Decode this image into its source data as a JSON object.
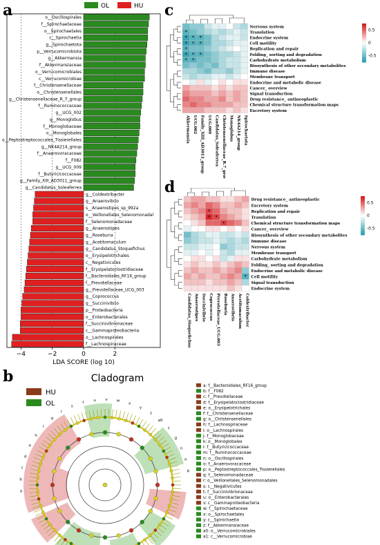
{
  "panel_labels": {
    "a": "a",
    "b": "b",
    "c": "c",
    "d": "d"
  },
  "chart_data": [
    {
      "type": "bar",
      "panel": "a",
      "legend": [
        {
          "name": "OL",
          "color": "#2a8a1f"
        },
        {
          "name": "HU",
          "color": "#e02020"
        }
      ],
      "xlabel": "LDA SCORE (log 10)",
      "xticks": [
        -4,
        -2,
        0,
        2
      ],
      "xlim": [
        -4.9,
        4.9
      ],
      "series": [
        {
          "name": "OL",
          "color": "#2a8a1f",
          "categories": [
            "o__Oscillospirales",
            "f__Spirochaetaceae",
            "o__Spirochaetales",
            "c__Spirochaetia",
            "g__Spirochaetota",
            "p__Verrucomicrobiota",
            "g__Akkermansia",
            "f__Akkermansiaceae",
            "o__Verrucomicrobiales",
            "c__Verrucomicrobiae",
            "f__Christensenellaceae",
            "o__Christensenellales",
            "g__Christensenellaceae_R_7_group",
            "f__Ruminococcaceae",
            "g__UCG_002",
            "g__Monoglobus",
            "f__Monoglobaceae",
            "o__Monoglobales",
            "o__Peptostreptococcales_Tissierellales",
            "g__NK4A214_group",
            "f__Anaerovoracaceae",
            "f__F082",
            "g__UCG_009",
            "f__Butyricicoccaceae",
            "g__Family_XIII_AD3011_group",
            "g__Candidatus_Soleaferrea"
          ],
          "values": [
            4.2,
            4.15,
            4.1,
            4.1,
            4.05,
            4.0,
            3.95,
            3.95,
            3.9,
            3.9,
            3.8,
            3.8,
            3.75,
            3.7,
            3.65,
            3.6,
            3.6,
            3.55,
            3.5,
            3.45,
            3.4,
            3.35,
            3.3,
            3.3,
            3.25,
            3.2
          ]
        },
        {
          "name": "HU",
          "color": "#e02020",
          "categories": [
            "g__Coldextribacter",
            "g__Anaerovibrio",
            "s__Anaerostipes_sp_992a",
            "o__Veillonellales_Selenomonadal",
            "f__Selenomonadaceae",
            "g__Anaerostipes",
            "g__Roseburia",
            "g__Acetitomaculum",
            "g__Candidatus_Stoquefichus",
            "o__Erysipelotrichales",
            "c__Negativicutes",
            "f__Erysipelatoclostridiaceae",
            "f__Bacteroidales_RF16_group",
            "f__Prevotellaceae",
            "g__Prevotellaceae_UCG_003",
            "g__Coprococcus",
            "g__Succinivibrio",
            "p__Proteobacteria",
            "o__Enterobacterales",
            "f__Succinivibrionaceae",
            "c__Gammaproteobacteria",
            "o__Lachnospirales",
            "f__Lachnospiraceae"
          ],
          "values": [
            -3.1,
            -3.15,
            -3.2,
            -3.25,
            -3.25,
            -3.35,
            -3.4,
            -3.45,
            -3.5,
            -3.55,
            -3.6,
            -3.65,
            -3.7,
            -3.75,
            -3.8,
            -3.9,
            -3.95,
            -4.0,
            -4.0,
            -4.05,
            -4.05,
            -4.55,
            -4.6
          ]
        }
      ]
    },
    {
      "type": "heatmap",
      "panel": "c",
      "columns": [
        "Akkermansia",
        "UCG.002",
        "Family_XIII_AD3011_group",
        "UCG.009",
        "Candidatus_Soleaferrea",
        "Christensenellaceae_R.7_group",
        "Monoglobus",
        "NK4A214_group",
        "Spirochaetota"
      ],
      "rows": [
        "Nervous system",
        "Translation",
        "Endocrine system",
        "Cell motility",
        "Replication and repair",
        "Folding_ sorting and degradation",
        "Carbohydrate metabolism",
        "Biosynthesis of other secondary metabolites",
        "Immune disease",
        "Membrane transport",
        "Endocrine and metabolic disease",
        "Cancer_ overview",
        "Signal transduction",
        "Drug resistance_ antineoplastic",
        "Chemical structure transformation maps",
        "Excretory system"
      ],
      "values": [
        [
          -0.5,
          -0.4,
          -0.4,
          -0.2,
          -0.1,
          -0.1,
          0.0,
          -0.2,
          -0.3
        ],
        [
          -0.6,
          -0.5,
          -0.4,
          -0.3,
          -0.2,
          -0.3,
          -0.2,
          -0.1,
          -0.2
        ],
        [
          -0.7,
          -0.6,
          -0.6,
          -0.5,
          -0.3,
          -0.2,
          -0.1,
          -0.1,
          -0.2
        ],
        [
          -0.7,
          -0.6,
          -0.6,
          -0.5,
          -0.3,
          -0.3,
          -0.2,
          -0.1,
          -0.1
        ],
        [
          -0.6,
          -0.5,
          -0.5,
          -0.4,
          -0.3,
          -0.2,
          -0.1,
          0.0,
          -0.1
        ],
        [
          -0.7,
          -0.6,
          -0.6,
          -0.5,
          -0.4,
          -0.3,
          -0.3,
          -0.2,
          -0.1
        ],
        [
          -0.6,
          -0.6,
          -0.5,
          -0.5,
          -0.4,
          -0.3,
          -0.2,
          -0.2,
          -0.1
        ],
        [
          -0.5,
          -0.4,
          -0.5,
          -0.4,
          -0.5,
          -0.3,
          -0.2,
          -0.2,
          -0.1
        ],
        [
          -0.3,
          -0.3,
          -0.4,
          -0.5,
          -0.3,
          -0.3,
          -0.4,
          -0.2,
          -0.1
        ],
        [
          -0.2,
          -0.3,
          -0.2,
          -0.2,
          -0.1,
          -0.1,
          -0.2,
          -0.1,
          0.0
        ],
        [
          0.0,
          -0.1,
          0.1,
          -0.1,
          0.0,
          0.1,
          0.0,
          0.1,
          0.1
        ],
        [
          0.3,
          0.2,
          0.2,
          0.2,
          0.1,
          0.2,
          0.1,
          0.2,
          0.2
        ],
        [
          0.4,
          0.3,
          0.3,
          0.3,
          0.2,
          0.3,
          0.2,
          0.3,
          0.2
        ],
        [
          0.5,
          0.4,
          0.4,
          0.3,
          0.3,
          0.4,
          0.2,
          0.3,
          0.2
        ],
        [
          0.4,
          0.5,
          0.4,
          0.4,
          0.3,
          0.3,
          0.3,
          0.2,
          0.2
        ],
        [
          0.3,
          0.3,
          0.3,
          0.2,
          0.2,
          0.2,
          0.1,
          0.2,
          0.1
        ]
      ],
      "colorbar": {
        "ticks": [
          "0.5",
          "0",
          "-0.5"
        ],
        "high_color": "#d7191c",
        "mid_color": "#ffffff",
        "low_color": "#2c9fae"
      }
    },
    {
      "type": "heatmap",
      "panel": "d",
      "columns": [
        "Candidatus_Stoquefichus",
        "Anaerostipes",
        "Succinivibrio",
        "Coprococcus",
        "Prevotellaceae_UCG.003",
        "Roseburia",
        "Anaerovibrio",
        "Acetitomaculum",
        "Coldextribacter"
      ],
      "rows": [
        "Drug resistance_ antineoplastic",
        "Excretory system",
        "Replication and repair",
        "Translation",
        "Chemical structure transformation maps",
        "Cancer_ overview",
        "Biosynthesis of other secondary metabolites",
        "Immune disease",
        "Nervous system",
        "Membrane transport",
        "Carbohydrate metabolism",
        "Folding_ sorting and degradation",
        "Endocrine and metabolic disease",
        "Cell motility",
        "Signal transduction",
        "Endocrine system"
      ],
      "values": [
        [
          0.2,
          0.3,
          0.3,
          0.2,
          0.2,
          0.1,
          0.1,
          0.2,
          0.3
        ],
        [
          0.3,
          0.4,
          0.3,
          0.5,
          0.4,
          0.2,
          0.2,
          0.3,
          0.2
        ],
        [
          0.2,
          0.3,
          0.4,
          0.6,
          0.5,
          0.3,
          0.2,
          0.2,
          0.1
        ],
        [
          0.1,
          0.2,
          0.3,
          0.7,
          0.6,
          0.4,
          0.3,
          0.2,
          0.1
        ],
        [
          0.0,
          0.1,
          0.2,
          0.5,
          0.5,
          0.6,
          0.5,
          0.4,
          0.2
        ],
        [
          -0.1,
          0.0,
          0.0,
          0.1,
          0.1,
          0.0,
          0.1,
          0.0,
          0.1
        ],
        [
          -0.5,
          -0.3,
          -0.2,
          -0.1,
          -0.1,
          -0.2,
          -0.2,
          -0.1,
          -0.2
        ],
        [
          -0.4,
          -0.3,
          -0.2,
          -0.2,
          -0.1,
          -0.2,
          -0.3,
          -0.2,
          -0.3
        ],
        [
          -0.2,
          -0.2,
          -0.1,
          -0.1,
          0.0,
          -0.4,
          -0.3,
          -0.2,
          -0.2
        ],
        [
          -0.1,
          -0.1,
          0.0,
          -0.1,
          0.0,
          -0.2,
          -0.3,
          -0.1,
          -0.1
        ],
        [
          0.0,
          0.1,
          0.1,
          0.0,
          0.1,
          -0.2,
          -0.1,
          0.1,
          0.1
        ],
        [
          0.1,
          0.2,
          0.1,
          0.1,
          0.2,
          0.1,
          0.2,
          0.3,
          0.2
        ],
        [
          0.2,
          0.3,
          0.2,
          0.2,
          0.3,
          0.2,
          0.3,
          0.4,
          -0.4
        ],
        [
          0.3,
          0.2,
          0.3,
          0.2,
          0.2,
          0.3,
          0.4,
          0.3,
          -0.6
        ],
        [
          0.2,
          0.2,
          0.2,
          0.1,
          0.2,
          0.2,
          0.3,
          0.2,
          -0.3
        ],
        [
          0.1,
          0.1,
          0.1,
          0.1,
          0.1,
          0.1,
          0.2,
          0.1,
          0.0
        ]
      ],
      "colorbar": {
        "ticks": [
          "0.5",
          "0",
          "-0.5"
        ],
        "high_color": "#d7191c",
        "mid_color": "#ffffff",
        "low_color": "#2c9fae"
      }
    }
  ],
  "cladogram": {
    "title": "Cladogram",
    "legend": [
      {
        "name": "HU",
        "color": "#8b3a1a"
      },
      {
        "name": "OL",
        "color": "#2a8a1f"
      }
    ],
    "key": [
      {
        "id": "a",
        "text": "a: f__Bacteroidales_RF16_group",
        "group": "HU"
      },
      {
        "id": "b",
        "text": "b: f__F082",
        "group": "OL"
      },
      {
        "id": "c",
        "text": "c: f__Prevotellaceae",
        "group": "HU"
      },
      {
        "id": "d",
        "text": "d: f__Erysipelatoclostridiaceae",
        "group": "HU"
      },
      {
        "id": "e",
        "text": "e: o__Erysipelotrichales",
        "group": "HU"
      },
      {
        "id": "f",
        "text": "f: f__Christensenellaceae",
        "group": "OL"
      },
      {
        "id": "g",
        "text": "g: o__Christensenellales",
        "group": "OL"
      },
      {
        "id": "h",
        "text": "h: f__Lachnospiraceae",
        "group": "HU"
      },
      {
        "id": "i",
        "text": "i: o__Lachnospirales",
        "group": "HU"
      },
      {
        "id": "j",
        "text": "j: f__Monoglobaceae",
        "group": "OL"
      },
      {
        "id": "k",
        "text": "k: o__Monoglobales",
        "group": "OL"
      },
      {
        "id": "l",
        "text": "l: f__Butyricicoccaceae",
        "group": "OL"
      },
      {
        "id": "m",
        "text": "m: f__Ruminococcaceae",
        "group": "OL"
      },
      {
        "id": "n",
        "text": "n: o__Oscillospirales",
        "group": "OL"
      },
      {
        "id": "o",
        "text": "o: f__Anaerovoracaceae",
        "group": "OL"
      },
      {
        "id": "p",
        "text": "p: o__Peptostreptococcales_Tissierellales",
        "group": "OL"
      },
      {
        "id": "q",
        "text": "q: f__Selenomonadaceae",
        "group": "HU"
      },
      {
        "id": "r",
        "text": "r: o__Veillonellales_Selenomonadales",
        "group": "HU"
      },
      {
        "id": "s",
        "text": "s: c__Negativicutes",
        "group": "HU"
      },
      {
        "id": "t",
        "text": "t: f__Succinivibrionaceae",
        "group": "HU"
      },
      {
        "id": "u",
        "text": "u: o__Enterobacterales",
        "group": "HU"
      },
      {
        "id": "v",
        "text": "v: c__Gammaproteobacteria",
        "group": "HU"
      },
      {
        "id": "w",
        "text": "w: f__Spirochaetaceae",
        "group": "OL"
      },
      {
        "id": "x",
        "text": "x: o__Spirochaetales",
        "group": "OL"
      },
      {
        "id": "y",
        "text": "y: c__Spirochaetia",
        "group": "OL"
      },
      {
        "id": "z",
        "text": "z: f__Akkermansiaceae",
        "group": "OL"
      },
      {
        "id": "a0",
        "text": "a0: o__Verrucomicrobiales",
        "group": "OL"
      },
      {
        "id": "a1",
        "text": "a1: c__Verrucomicrobiae",
        "group": "OL"
      }
    ],
    "sector_letters": [
      "a",
      "b",
      "c",
      "d",
      "e",
      "h",
      "i",
      "q",
      "r",
      "s",
      "t",
      "u",
      "v",
      "w",
      "x",
      "y",
      "z",
      "a0",
      "f",
      "g",
      "n",
      "o",
      "p"
    ]
  }
}
